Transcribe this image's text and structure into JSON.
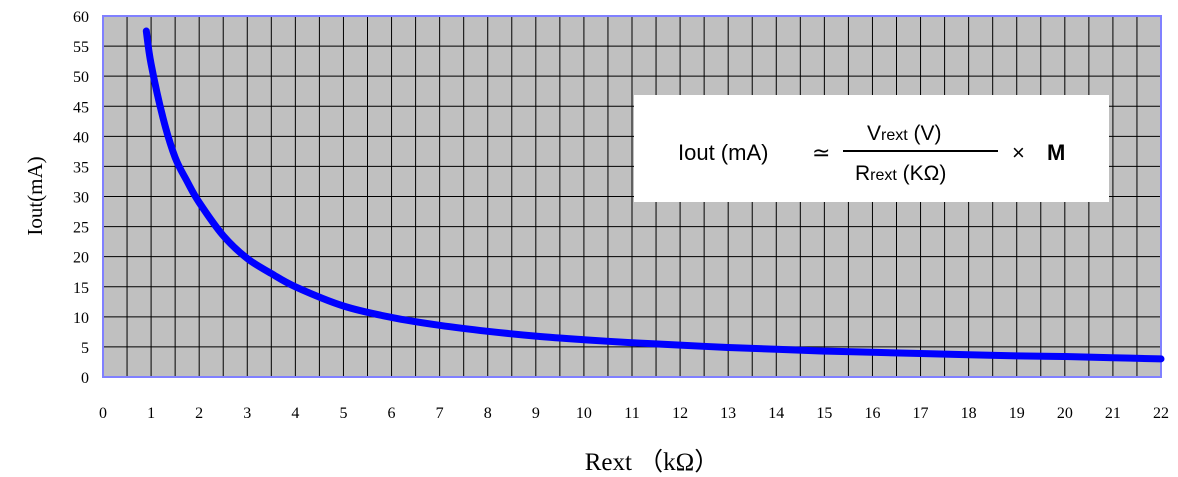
{
  "chart_data": {
    "type": "line",
    "xlabel": "Rext （kΩ）",
    "ylabel": "Iout(mA)",
    "xlim": [
      0,
      22
    ],
    "ylim": [
      0,
      60
    ],
    "xticks": [
      "0",
      "1",
      "2",
      "3",
      "4",
      "5",
      "6",
      "7",
      "8",
      "9",
      "10",
      "11",
      "12",
      "13",
      "14",
      "15",
      "16",
      "17",
      "18",
      "19",
      "20",
      "21",
      "22"
    ],
    "yticks": [
      "0",
      "5",
      "10",
      "15",
      "20",
      "25",
      "30",
      "35",
      "40",
      "45",
      "50",
      "55",
      "60"
    ],
    "grid": true,
    "plot_background": "#c0c0c0",
    "series": [
      {
        "color": "#0000ff",
        "x": [
          0.9,
          1.0,
          1.25,
          1.5,
          1.75,
          2.0,
          2.5,
          3.0,
          3.5,
          4.0,
          5.0,
          6.0,
          7.0,
          8.0,
          9.0,
          10.0,
          11.0,
          12.0,
          13.0,
          14.0,
          15.0,
          16.0,
          17.0,
          18.0,
          19.0,
          20.0,
          21.0,
          22.0
        ],
        "y": [
          57.5,
          52.0,
          43.0,
          36.5,
          32.5,
          29.0,
          23.5,
          19.7,
          17.2,
          15.0,
          11.8,
          9.9,
          8.6,
          7.6,
          6.8,
          6.2,
          5.7,
          5.3,
          4.9,
          4.6,
          4.3,
          4.1,
          3.9,
          3.7,
          3.5,
          3.4,
          3.2,
          3.0
        ]
      }
    ],
    "annotation": {
      "lhs": "Iout (mA)",
      "approx": "≃",
      "numerator_v": "V",
      "numerator_sub": "rext",
      "numerator_unit": " (V)",
      "denominator_r": "R",
      "denominator_sub": "rext",
      "denominator_unit": " (KΩ)",
      "times": "×",
      "factor": "M"
    }
  }
}
